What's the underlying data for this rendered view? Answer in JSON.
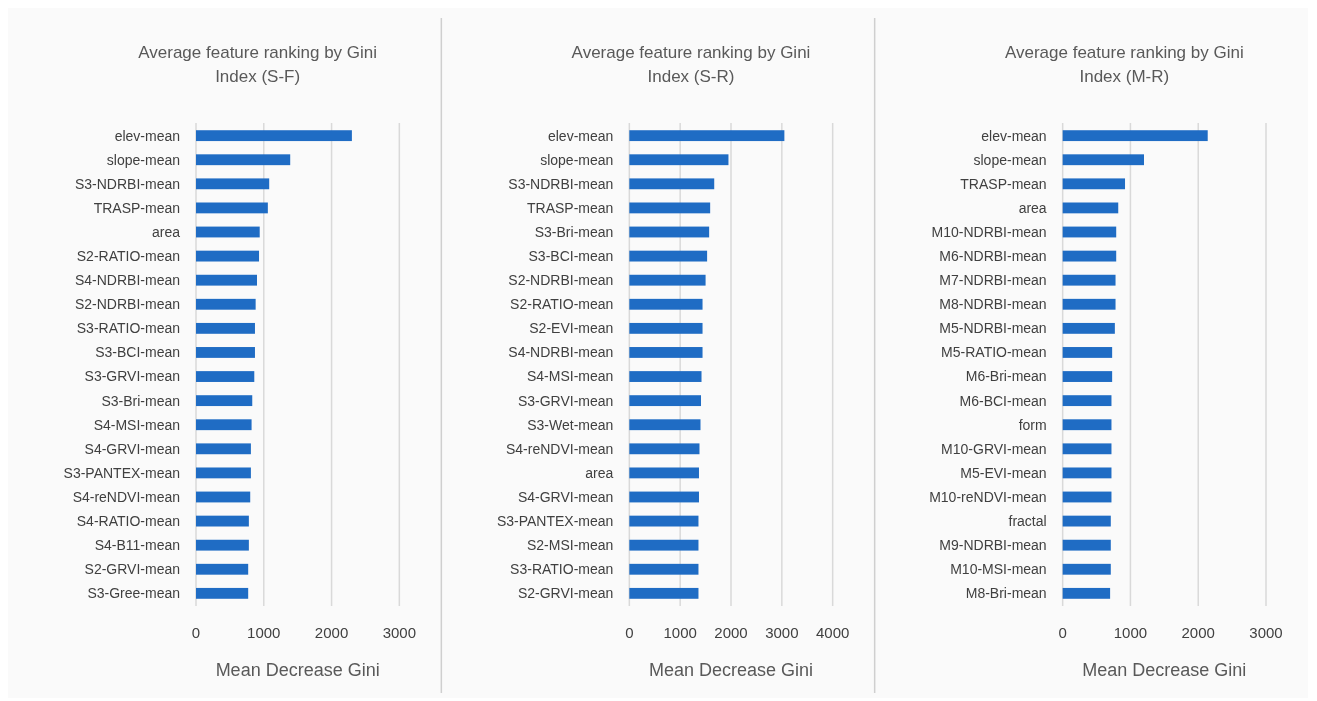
{
  "chart_data": [
    {
      "type": "bar",
      "orientation": "horizontal",
      "title": "Average feature ranking by Gini Index (S-F)",
      "xlabel": "Mean Decrease Gini",
      "categories": [
        "elev-mean",
        "slope-mean",
        "S3-NDRBI-mean",
        "TRASP-mean",
        "area",
        "S2-RATIO-mean",
        "S4-NDRBI-mean",
        "S2-NDRBI-mean",
        "S3-RATIO-mean",
        "S3-BCI-mean",
        "S3-GRVI-mean",
        "S3-Bri-mean",
        "S4-MSI-mean",
        "S4-GRVI-mean",
        "S3-PANTEX-mean",
        "S4-reNDVI-mean",
        "S4-RATIO-mean",
        "S4-B11-mean",
        "S2-GRVI-mean",
        "S3-Gree-mean"
      ],
      "values": [
        2300,
        1390,
        1080,
        1060,
        940,
        930,
        900,
        880,
        870,
        870,
        860,
        830,
        820,
        810,
        810,
        800,
        780,
        780,
        770,
        770
      ],
      "color": "#1f6cc4",
      "xlim": [
        0,
        3000
      ],
      "xticks": [
        0,
        1000,
        2000,
        3000
      ],
      "grid": "x"
    },
    {
      "type": "bar",
      "orientation": "horizontal",
      "title": "Average feature ranking by Gini Index (S-R)",
      "xlabel": "Mean Decrease Gini",
      "categories": [
        "elev-mean",
        "slope-mean",
        "S3-NDRBI-mean",
        "TRASP-mean",
        "S3-Bri-mean",
        "S3-BCI-mean",
        "S2-NDRBI-mean",
        "S2-RATIO-mean",
        "S2-EVI-mean",
        "S4-NDRBI-mean",
        "S4-MSI-mean",
        "S3-GRVI-mean",
        "S3-Wet-mean",
        "S4-reNDVI-mean",
        "area",
        "S4-GRVI-mean",
        "S3-PANTEX-mean",
        "S2-MSI-mean",
        "S3-RATIO-mean",
        "S2-GRVI-mean"
      ],
      "values": [
        3050,
        1950,
        1670,
        1590,
        1570,
        1530,
        1500,
        1440,
        1440,
        1440,
        1420,
        1410,
        1400,
        1380,
        1370,
        1370,
        1360,
        1360,
        1360,
        1360
      ],
      "color": "#1f6cc4",
      "xlim": [
        0,
        4000
      ],
      "xticks": [
        0,
        1000,
        2000,
        3000,
        4000
      ],
      "grid": "x"
    },
    {
      "type": "bar",
      "orientation": "horizontal",
      "title": "Average feature ranking by Gini Index (M-R)",
      "xlabel": "Mean Decrease Gini",
      "categories": [
        "elev-mean",
        "slope-mean",
        "TRASP-mean",
        "area",
        "M10-NDRBI-mean",
        "M6-NDRBI-mean",
        "M7-NDRBI-mean",
        "M8-NDRBI-mean",
        "M5-NDRBI-mean",
        "M5-RATIO-mean",
        "M6-Bri-mean",
        "M6-BCI-mean",
        "form",
        "M10-GRVI-mean",
        "M5-EVI-mean",
        "M10-reNDVI-mean",
        "fractal",
        "M9-NDRBI-mean",
        "M10-MSI-mean",
        "M8-Bri-mean"
      ],
      "values": [
        2140,
        1200,
        920,
        820,
        790,
        790,
        780,
        780,
        770,
        730,
        730,
        720,
        720,
        720,
        720,
        720,
        710,
        710,
        710,
        700
      ],
      "color": "#1f6cc4",
      "xlim": [
        0,
        3000
      ],
      "xticks": [
        0,
        1000,
        2000,
        3000
      ],
      "grid": "x"
    }
  ]
}
